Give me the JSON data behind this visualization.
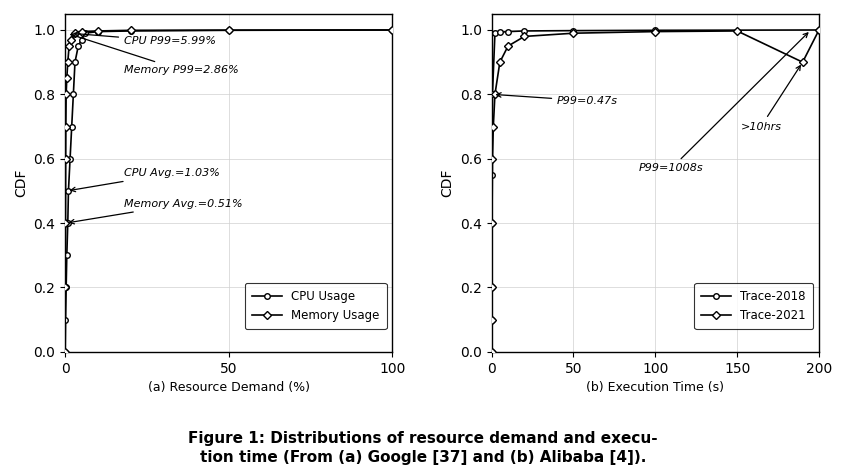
{
  "cpu_x": [
    0,
    0.1,
    0.3,
    0.5,
    0.8,
    1.0,
    1.5,
    2.0,
    2.5,
    3.0,
    4.0,
    5.0,
    5.99,
    10,
    20,
    50,
    100
  ],
  "cpu_y": [
    0,
    0.1,
    0.2,
    0.3,
    0.4,
    0.5,
    0.6,
    0.7,
    0.8,
    0.9,
    0.95,
    0.97,
    0.99,
    0.995,
    0.997,
    0.999,
    1.0
  ],
  "mem_x": [
    0,
    0.05,
    0.1,
    0.15,
    0.2,
    0.3,
    0.5,
    0.8,
    1.2,
    1.8,
    2.86,
    5,
    10,
    20,
    50,
    100
  ],
  "mem_y": [
    0,
    0.2,
    0.4,
    0.6,
    0.7,
    0.8,
    0.85,
    0.9,
    0.95,
    0.97,
    0.99,
    0.995,
    0.997,
    0.999,
    0.9995,
    1.0
  ],
  "trace2018_x": [
    0,
    0.05,
    0.1,
    0.15,
    0.2,
    0.3,
    0.47,
    2,
    5,
    10,
    20,
    50,
    100,
    200
  ],
  "trace2018_y": [
    0,
    0.1,
    0.2,
    0.4,
    0.55,
    0.7,
    0.8,
    0.99,
    0.993,
    0.995,
    0.997,
    0.998,
    0.999,
    1.0
  ],
  "trace2021_x": [
    0,
    0.05,
    0.1,
    0.2,
    0.5,
    1,
    2,
    5,
    10,
    20,
    50,
    100,
    150,
    190,
    200
  ],
  "trace2021_y": [
    0,
    0.1,
    0.2,
    0.4,
    0.6,
    0.7,
    0.8,
    0.9,
    0.95,
    0.98,
    0.99,
    0.995,
    0.997,
    0.9,
    1.0
  ],
  "xlabel_a": "(a) Resource Demand (%)",
  "xlabel_b": "(b) Execution Time (s)",
  "ylabel": "CDF",
  "xlim_a": [
    0,
    100
  ],
  "xlim_b": [
    0,
    200
  ],
  "ylim": [
    0,
    1.05
  ],
  "xticks_a": [
    0,
    50,
    100
  ],
  "xticks_b": [
    0,
    50,
    100,
    150,
    200
  ],
  "yticks": [
    0,
    0.2,
    0.4,
    0.6,
    0.8,
    1
  ],
  "caption_line1": "Figure 1: Distributions of resource demand and execu-",
  "caption_line2": "tion time (From (a) Google [37] and (b) Alibaba [4]).",
  "bg_color": "#ffffff"
}
